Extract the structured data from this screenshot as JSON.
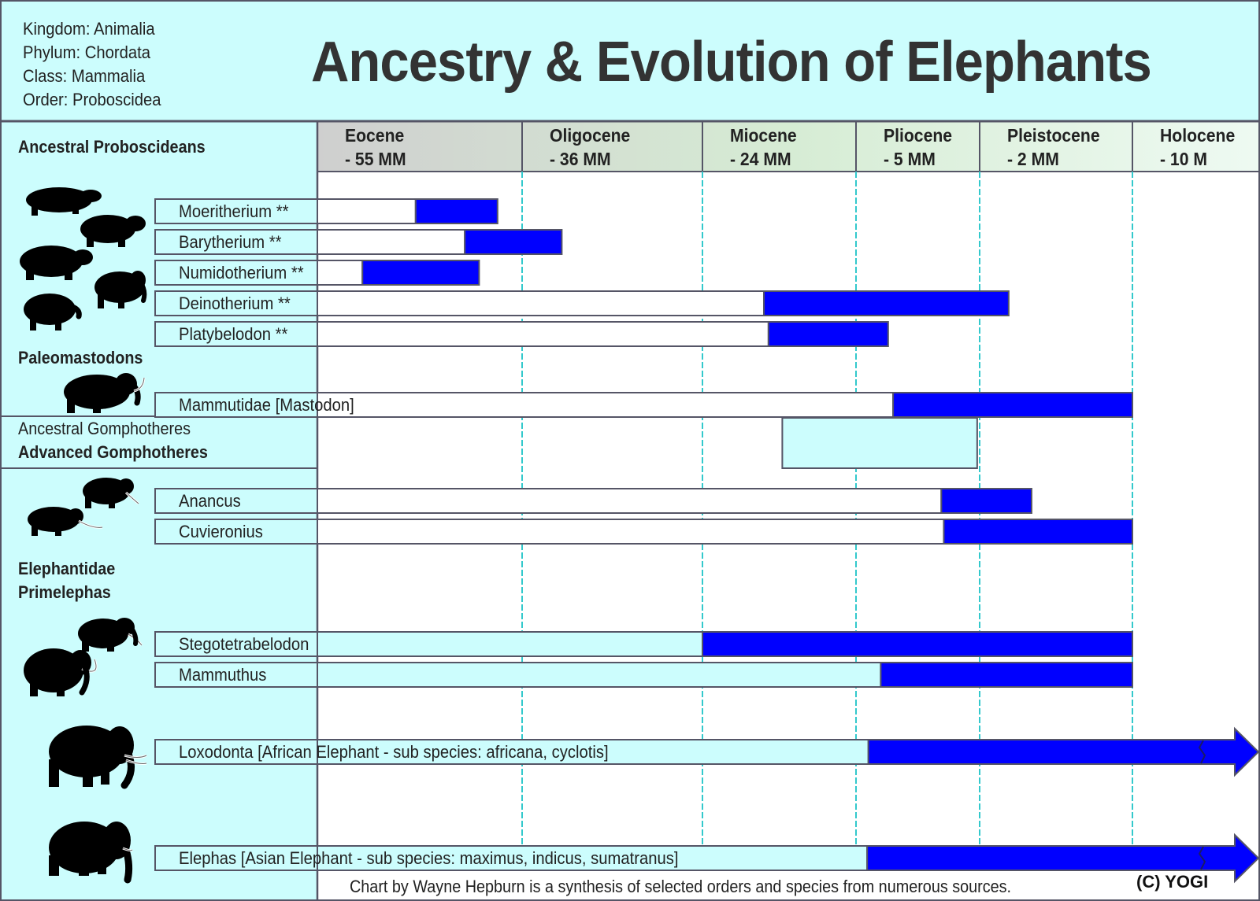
{
  "taxonomy": [
    "Kingdom: Animalia",
    "Phylum: Chordata",
    "Class: Mammalia",
    "Order: Proboscidea"
  ],
  "title": "Ancestry & Evolution of Elephants",
  "colors": {
    "background_band": "#ccfdfd",
    "bar_fill": "#0000ff",
    "grid_line": "#33c9cc",
    "border": "#555566"
  },
  "groups": [
    {
      "id": "ancestral-proboscideans",
      "label": "Ancestral Proboscideans",
      "bold": true
    },
    {
      "id": "paleomastodons",
      "label": "Paleomastodons",
      "bold": true
    },
    {
      "id": "ancestral-gomphotheres",
      "label": "Ancestral Gomphotheres",
      "bold": false
    },
    {
      "id": "advanced-gomphotheres",
      "label": "Advanced Gomphotheres",
      "bold": true
    },
    {
      "id": "elephantidae",
      "label": "Elephantidae",
      "bold": true
    },
    {
      "id": "primelephas",
      "label": "Primelephas",
      "bold": true
    }
  ],
  "caption": "Chart by Wayne Hepburn is a synthesis of selected orders and species from numerous sources.",
  "copyright": "(C) YOGI",
  "chart_data": {
    "type": "timeline",
    "epochs": [
      {
        "name": "Eocene",
        "start": "- 55 MM"
      },
      {
        "name": "Oligocene",
        "start": "- 36 MM"
      },
      {
        "name": "Miocene",
        "start": "- 24 MM"
      },
      {
        "name": "Pliocene",
        "start": "- 5 MM"
      },
      {
        "name": "Pleistocene",
        "start": "- 2 MM"
      },
      {
        "name": "Holocene",
        "start": "- 10 M"
      }
    ],
    "species": [
      {
        "name": "Moeritherium **",
        "group": "ancestral-proboscideans",
        "from_epoch": 0.48,
        "to_epoch": 0.88,
        "box": "white",
        "extends": false
      },
      {
        "name": "Barytherium **",
        "group": "ancestral-proboscideans",
        "from_epoch": 0.72,
        "to_epoch": 1.22,
        "box": "white",
        "extends": false
      },
      {
        "name": "Numidotherium **",
        "group": "ancestral-proboscideans",
        "from_epoch": 0.22,
        "to_epoch": 0.79,
        "box": "white",
        "extends": false
      },
      {
        "name": "Deinotherium **",
        "group": "ancestral-proboscideans",
        "from_epoch": 2.4,
        "to_epoch": 4.19,
        "box": "white",
        "extends": false
      },
      {
        "name": "Platybelodon **",
        "group": "ancestral-proboscideans",
        "from_epoch": 2.43,
        "to_epoch": 3.26,
        "box": "white",
        "extends": false
      },
      {
        "name": "Mammutidae [Mastodon]",
        "group": "paleomastodons",
        "from_epoch": 3.3,
        "to_epoch": 5.0,
        "box": "white",
        "extends": false
      },
      {
        "name": "Anancus",
        "group": "advanced-gomphotheres",
        "from_epoch": 3.69,
        "to_epoch": 4.34,
        "box": "white",
        "extends": false
      },
      {
        "name": "Cuvieronius",
        "group": "advanced-gomphotheres",
        "from_epoch": 3.71,
        "to_epoch": 5.0,
        "box": "white",
        "extends": false
      },
      {
        "name": "Stegotetrabelodon",
        "group": "primelephas",
        "from_epoch": 2.0,
        "to_epoch": 5.0,
        "box": "cyan",
        "extends": false
      },
      {
        "name": "Mammuthus",
        "group": "primelephas",
        "from_epoch": 3.2,
        "to_epoch": 5.0,
        "box": "cyan",
        "extends": false
      },
      {
        "name": "Loxodonta [African Elephant - sub species: africana, cyclotis]",
        "group": "primelephas",
        "from_epoch": 3.1,
        "to_epoch": null,
        "box": "cyan",
        "extends": true
      },
      {
        "name": "Elephas [Asian Elephant - sub species: maximus, indicus, sumatranus]",
        "group": "primelephas",
        "from_epoch": 3.09,
        "to_epoch": null,
        "box": "cyan",
        "extends": true
      }
    ],
    "gomphothere_span": {
      "from_epoch": 2.52,
      "to_epoch": 3.98
    },
    "grid": true,
    "legend": "none"
  }
}
